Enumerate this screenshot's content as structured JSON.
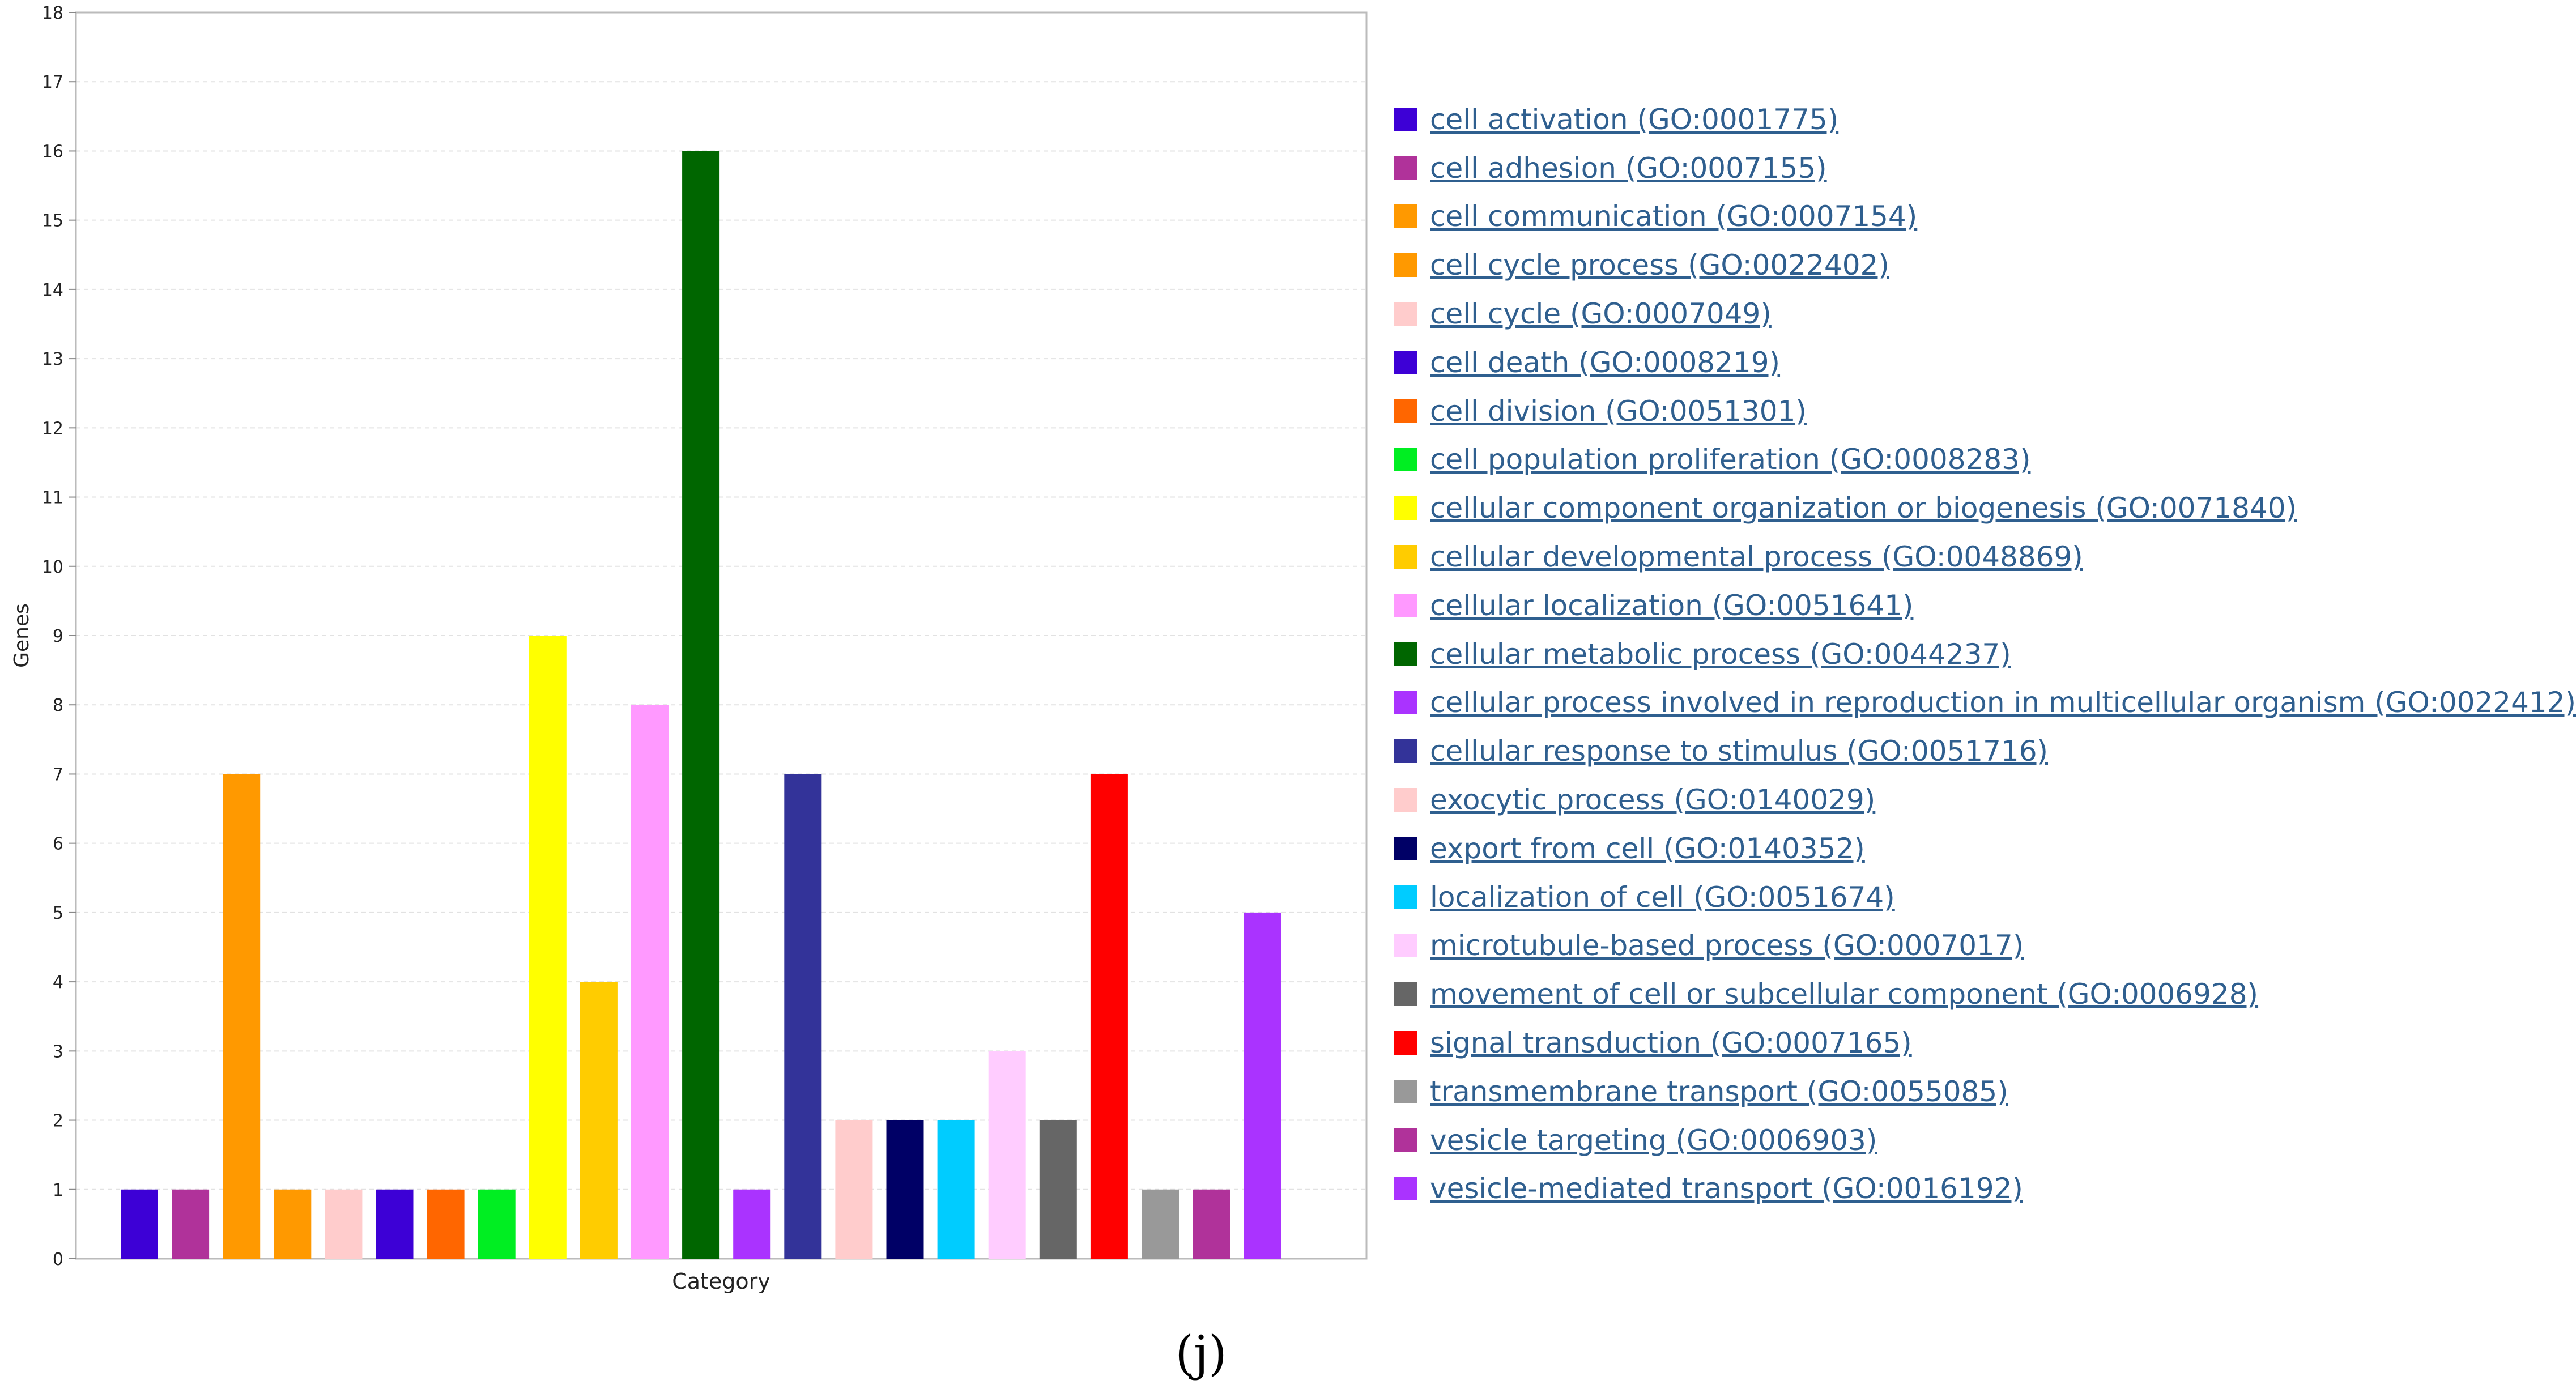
{
  "chart_data": {
    "type": "bar",
    "title": "",
    "xlabel": "Category",
    "ylabel": "Genes",
    "ylim": [
      0,
      18
    ],
    "yticks": [
      0,
      1,
      2,
      3,
      4,
      5,
      6,
      7,
      8,
      9,
      10,
      11,
      12,
      13,
      14,
      15,
      16,
      17,
      18
    ],
    "grid": "horizontal dashed",
    "legend_position": "right",
    "categories": [
      "cell activation (GO:0001775)",
      "cell adhesion (GO:0007155)",
      "cell communication (GO:0007154)",
      "cell cycle process (GO:0022402)",
      "cell cycle (GO:0007049)",
      "cell death (GO:0008219)",
      "cell division (GO:0051301)",
      "cell population proliferation (GO:0008283)",
      "cellular component organization or biogenesis (GO:0071840)",
      "cellular developmental process (GO:0048869)",
      "cellular localization (GO:0051641)",
      "cellular metabolic process (GO:0044237)",
      "cellular process involved in reproduction in multicellular organism (GO:0022412)",
      "cellular response to stimulus (GO:0051716)",
      "exocytic process (GO:0140029)",
      "export from cell (GO:0140352)",
      "localization of cell (GO:0051674)",
      "microtubule-based process (GO:0007017)",
      "movement of cell or subcellular component (GO:0006928)",
      "signal transduction (GO:0007165)",
      "transmembrane transport (GO:0055085)",
      "vesicle targeting (GO:0006903)",
      "vesicle-mediated transport (GO:0016192)"
    ],
    "values": [
      1,
      1,
      7,
      1,
      1,
      1,
      1,
      1,
      9,
      4,
      8,
      16,
      1,
      7,
      2,
      2,
      2,
      3,
      2,
      7,
      1,
      1,
      5
    ],
    "colors": [
      "#3d00d6",
      "#b0329a",
      "#ff9900",
      "#ff9900",
      "#ffcccc",
      "#3d00d6",
      "#ff6600",
      "#00ee22",
      "#ffff00",
      "#ffcc00",
      "#ff99ff",
      "#006600",
      "#aa33ff",
      "#333399",
      "#ffcccc",
      "#000066",
      "#00ccff",
      "#ffccff",
      "#666666",
      "#ff0000",
      "#999999",
      "#b0329a",
      "#aa33ff"
    ]
  },
  "caption": "(j)"
}
